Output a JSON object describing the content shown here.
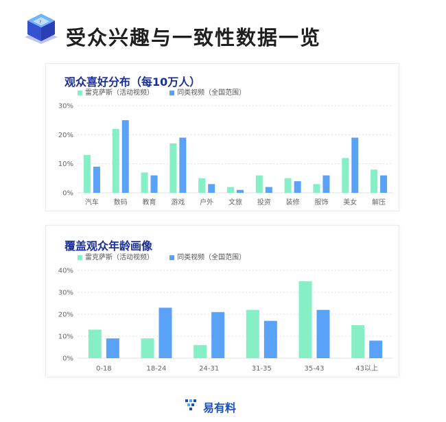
{
  "page": {
    "title": "受众兴趣与一致性数据一览"
  },
  "brand": {
    "name": "易有料"
  },
  "colors": {
    "series_a": "#86efc6",
    "series_b": "#5aa2f7",
    "title": "#1b2f9a",
    "grid": "#d9d9d9",
    "axis_text": "#666666"
  },
  "chart_data": [
    {
      "type": "bar",
      "title": "观众喜好分布（每10万人）",
      "categories": [
        "汽车",
        "数码",
        "教育",
        "游戏",
        "户外",
        "文旅",
        "投资",
        "装修",
        "服饰",
        "美女",
        "解压"
      ],
      "series": [
        {
          "name": "雷克萨斯（活动视频）",
          "values": [
            13,
            22,
            7,
            17,
            5,
            2,
            6,
            5,
            3,
            12,
            8
          ]
        },
        {
          "name": "同类视频（全国范围）",
          "values": [
            9,
            25,
            6,
            19,
            3,
            1,
            2,
            4,
            6,
            19,
            6
          ]
        }
      ],
      "ylim": [
        0,
        30
      ],
      "yticks": [
        "0%",
        "10%",
        "20%",
        "30%"
      ],
      "grid": true,
      "legend_position": "top-left"
    },
    {
      "type": "bar",
      "title": "覆盖观众年龄画像",
      "categories": [
        "0-18",
        "18-24",
        "24-31",
        "31-35",
        "35-43",
        "43以上"
      ],
      "series": [
        {
          "name": "雷克萨斯（活动视频）",
          "values": [
            13,
            9,
            6,
            22,
            35,
            15
          ]
        },
        {
          "name": "同类视频（全国范围）",
          "values": [
            9,
            23,
            21,
            17,
            22,
            8
          ]
        }
      ],
      "ylim": [
        0,
        40
      ],
      "yticks": [
        "0%",
        "10%",
        "20%",
        "30%",
        "40%"
      ],
      "grid": true,
      "legend_position": "top-left"
    }
  ]
}
